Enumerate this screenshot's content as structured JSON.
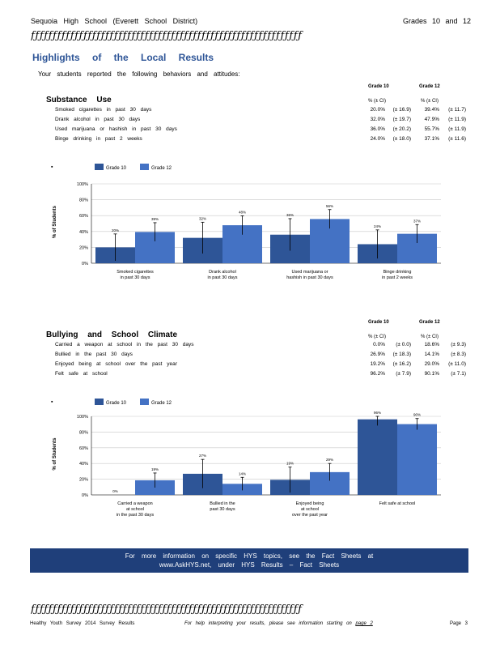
{
  "header": {
    "school": "Sequoia High School (Everett School District)",
    "grades": "Grades 10 and 12"
  },
  "rule_text": "ƒƒƒƒƒƒƒƒƒƒƒƒƒƒƒƒƒƒƒƒƒƒƒƒƒƒƒƒƒƒƒƒƒƒƒƒƒƒƒƒƒƒƒƒƒƒƒƒƒƒƒƒƒƒƒƒƒƒƒƒƒƒ",
  "title": "Highlights of the Local Results",
  "subtitle": "Your students reported the following behaviors and attitudes:",
  "substance": {
    "heading": "Substance Use",
    "grade10": "Grade 10",
    "grade12": "Grade 12",
    "col_pct": "% (± CI)",
    "rows": [
      {
        "label": "Smoked cigarettes in past 30 days",
        "g10": "20.0%",
        "g10ci": "(± 16.9)",
        "g12": "39.4%",
        "g12ci": "(± 11.7)"
      },
      {
        "label": "Drank alcohol in past 30 days",
        "g10": "32.0%",
        "g10ci": "(± 19.7)",
        "g12": "47.9%",
        "g12ci": "(± 11.9)"
      },
      {
        "label": "Used marijuana or hashish in past 30 days",
        "g10": "36.0%",
        "g10ci": "(± 20.2)",
        "g12": "55.7%",
        "g12ci": "(± 11.9)"
      },
      {
        "label": "Binge drinking in past 2 weeks",
        "g10": "24.0%",
        "g10ci": "(± 18.0)",
        "g12": "37.1%",
        "g12ci": "(± 11.6)"
      }
    ]
  },
  "bullying": {
    "heading": "Bullying and School Climate",
    "grade10": "Grade 10",
    "grade12": "Grade 12",
    "col_pct": "% (± CI)",
    "rows": [
      {
        "label": "Carried a weapon at school in the past 30 days",
        "g10": "0.0%",
        "g10ci": "(± 0.0)",
        "g12": "18.6%",
        "g12ci": "(± 9.3)"
      },
      {
        "label": "Bullied in the past 30 days",
        "g10": "26.9%",
        "g10ci": "(± 18.3)",
        "g12": "14.1%",
        "g12ci": "(± 8.3)"
      },
      {
        "label": "Enjoyed being at school over the past year",
        "g10": "19.2%",
        "g10ci": "(± 16.2)",
        "g12": "29.0%",
        "g12ci": "(± 11.0)"
      },
      {
        "label": "Felt safe at school",
        "g10": "96.2%",
        "g10ci": "(± 7.9)",
        "g12": "90.1%",
        "g12ci": "(± 7.1)"
      }
    ]
  },
  "colors": {
    "grade10": "#2e5597",
    "grade12": "#4472c4",
    "title": "#2e5597",
    "footer": "#1f3f7a"
  },
  "chart_data": [
    {
      "type": "bar",
      "ylabel": "% of Students",
      "ylim": [
        0,
        100
      ],
      "yticks": [
        "0%",
        "20%",
        "40%",
        "60%",
        "80%",
        "100%"
      ],
      "legend_mark": "▪",
      "categories": [
        [
          "Smoked cigarettes",
          "in past 30 days"
        ],
        [
          "Drank alcohol",
          "in past 30 days"
        ],
        [
          "Used marijuana or",
          "hashish in past 30 days"
        ],
        [
          "Binge drinking",
          "in past 2 weeks"
        ]
      ],
      "series": [
        {
          "name": "Grade 10",
          "values": [
            20,
            32,
            36,
            24
          ],
          "ci": [
            16.9,
            19.7,
            20.2,
            18.0
          ],
          "labels": [
            "20%",
            "32%",
            "36%",
            "24%"
          ]
        },
        {
          "name": "Grade 12",
          "values": [
            39.4,
            47.9,
            55.7,
            37.1
          ],
          "ci": [
            11.7,
            11.9,
            11.9,
            11.6
          ],
          "labels": [
            "39%",
            "48%",
            "56%",
            "37%"
          ]
        }
      ]
    },
    {
      "type": "bar",
      "ylabel": "% of Students",
      "ylim": [
        0,
        100
      ],
      "yticks": [
        "0%",
        "20%",
        "40%",
        "60%",
        "80%",
        "100%"
      ],
      "legend_mark": "▪",
      "categories": [
        [
          "Carried a weapon",
          "at school",
          "in the past 30 days"
        ],
        [
          "Bullied in the",
          "past 30 days"
        ],
        [
          "Enjoyed being",
          "at school",
          "over the past year"
        ],
        [
          "Felt safe at school"
        ]
      ],
      "series": [
        {
          "name": "Grade 10",
          "values": [
            0,
            26.9,
            19.2,
            96.2
          ],
          "ci": [
            0,
            18.3,
            16.2,
            7.9
          ],
          "labels": [
            "0%",
            "27%",
            "19%",
            "96%"
          ]
        },
        {
          "name": "Grade 12",
          "values": [
            18.6,
            14.1,
            29.0,
            90.1
          ],
          "ci": [
            9.3,
            8.3,
            11.0,
            7.1
          ],
          "labels": [
            "19%",
            "14%",
            "29%",
            "90%"
          ]
        }
      ]
    }
  ],
  "footer": {
    "line1": "For more information on specific HYS topics, see the Fact Sheets at",
    "line2": "www.AskHYS.net, under HYS Results – Fact Sheets"
  },
  "bottom": {
    "left": "Healthy Youth Survey 2014 Survey Results",
    "middle_pre": "For help interpreting your results, please see information starting on",
    "middle_link": "page 2",
    "right": "Page 3"
  }
}
